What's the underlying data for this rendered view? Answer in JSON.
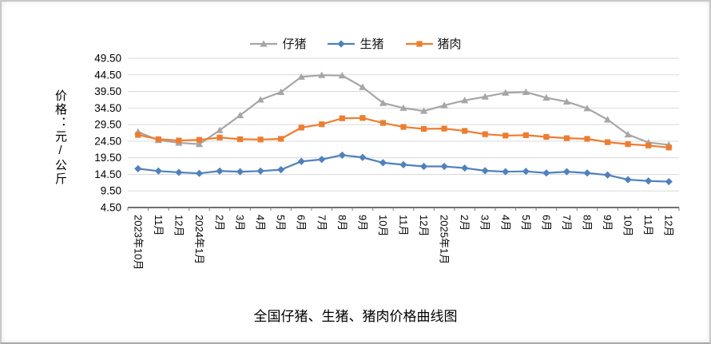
{
  "chart_data": {
    "type": "line",
    "title": "全国仔猪、生猪、猪肉价格曲线图",
    "ylabel": "价格：元/公斤",
    "xlabel": "",
    "ylim": [
      4.5,
      49.5
    ],
    "ytick_step": 5,
    "ytick_labels": [
      "4.50",
      "9.50",
      "14.50",
      "19.50",
      "24.50",
      "29.50",
      "34.50",
      "39.50",
      "44.50",
      "49.50"
    ],
    "grid": true,
    "legend_position": "top",
    "categories": [
      "2023年10月",
      "11月",
      "12月",
      "2024年1月",
      "2月",
      "3月",
      "4月",
      "5月",
      "6月",
      "7月",
      "8月",
      "9月",
      "10月",
      "11月",
      "12月",
      "2025年1月",
      "2月",
      "3月",
      "4月",
      "5月",
      "6月",
      "7月",
      "8月",
      "9月",
      "10月",
      "11月",
      "12月"
    ],
    "series": [
      {
        "id": "piglet",
        "name": "仔猪",
        "color": "#a6a6a6",
        "marker": "triangle",
        "values": [
          27.3,
          24.8,
          24.0,
          23.6,
          27.8,
          32.3,
          37.0,
          39.3,
          43.9,
          44.4,
          44.3,
          40.8,
          36.0,
          34.5,
          33.6,
          35.3,
          36.8,
          37.9,
          39.1,
          39.3,
          37.6,
          36.4,
          34.4,
          31.0,
          26.5,
          24.1,
          23.4
        ]
      },
      {
        "id": "hog",
        "name": "生猪",
        "color": "#4f81bd",
        "marker": "diamond",
        "values": [
          16.2,
          15.5,
          15.1,
          14.8,
          15.5,
          15.3,
          15.5,
          15.9,
          18.4,
          19.0,
          20.3,
          19.6,
          18.0,
          17.4,
          16.9,
          16.9,
          16.4,
          15.6,
          15.3,
          15.4,
          14.9,
          15.3,
          14.9,
          14.3,
          12.9,
          12.5,
          12.3
        ]
      },
      {
        "id": "pork",
        "name": "猪肉",
        "color": "#ed7d31",
        "marker": "square",
        "values": [
          26.4,
          25.1,
          24.7,
          24.9,
          25.6,
          25.1,
          25.0,
          25.2,
          28.6,
          29.6,
          31.4,
          31.5,
          30.0,
          28.8,
          28.2,
          28.3,
          27.6,
          26.6,
          26.2,
          26.3,
          25.8,
          25.4,
          25.2,
          24.2,
          23.6,
          23.2,
          22.6
        ]
      }
    ]
  }
}
